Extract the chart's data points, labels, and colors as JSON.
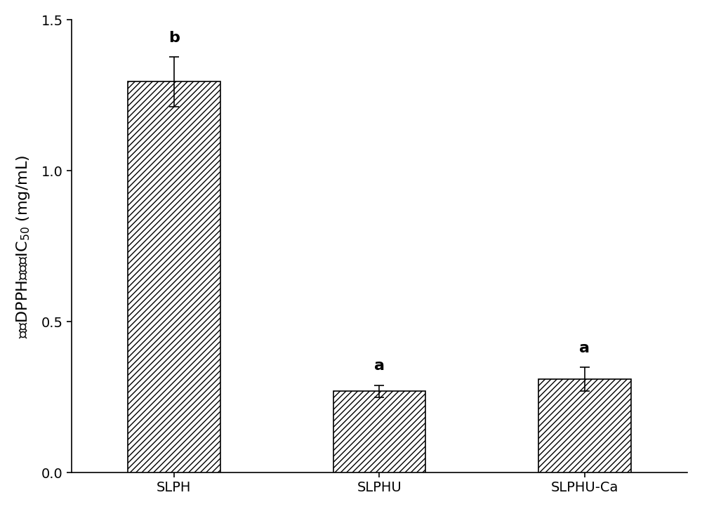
{
  "categories": [
    "SLPH",
    "SLPHU",
    "SLPHU-Ca"
  ],
  "values": [
    1.295,
    0.27,
    0.31
  ],
  "errors": [
    0.082,
    0.02,
    0.04
  ],
  "significance_labels": [
    "b",
    "a",
    "a"
  ],
  "ylabel": "清除DPPH自由基IC$_{50}$ (mg/mL)",
  "ylim": [
    0,
    1.5
  ],
  "yticks": [
    0.0,
    0.5,
    1.0,
    1.5
  ],
  "bar_color": "#ffffff",
  "hatch_pattern": "////",
  "bar_edge_color": "#000000",
  "bar_width": 0.45,
  "fig_width": 10.0,
  "fig_height": 7.25,
  "dpi": 100,
  "label_fontsize": 16,
  "tick_fontsize": 14,
  "sig_fontsize": 16,
  "background_color": "#ffffff",
  "bar_positions": [
    1,
    2,
    3
  ]
}
